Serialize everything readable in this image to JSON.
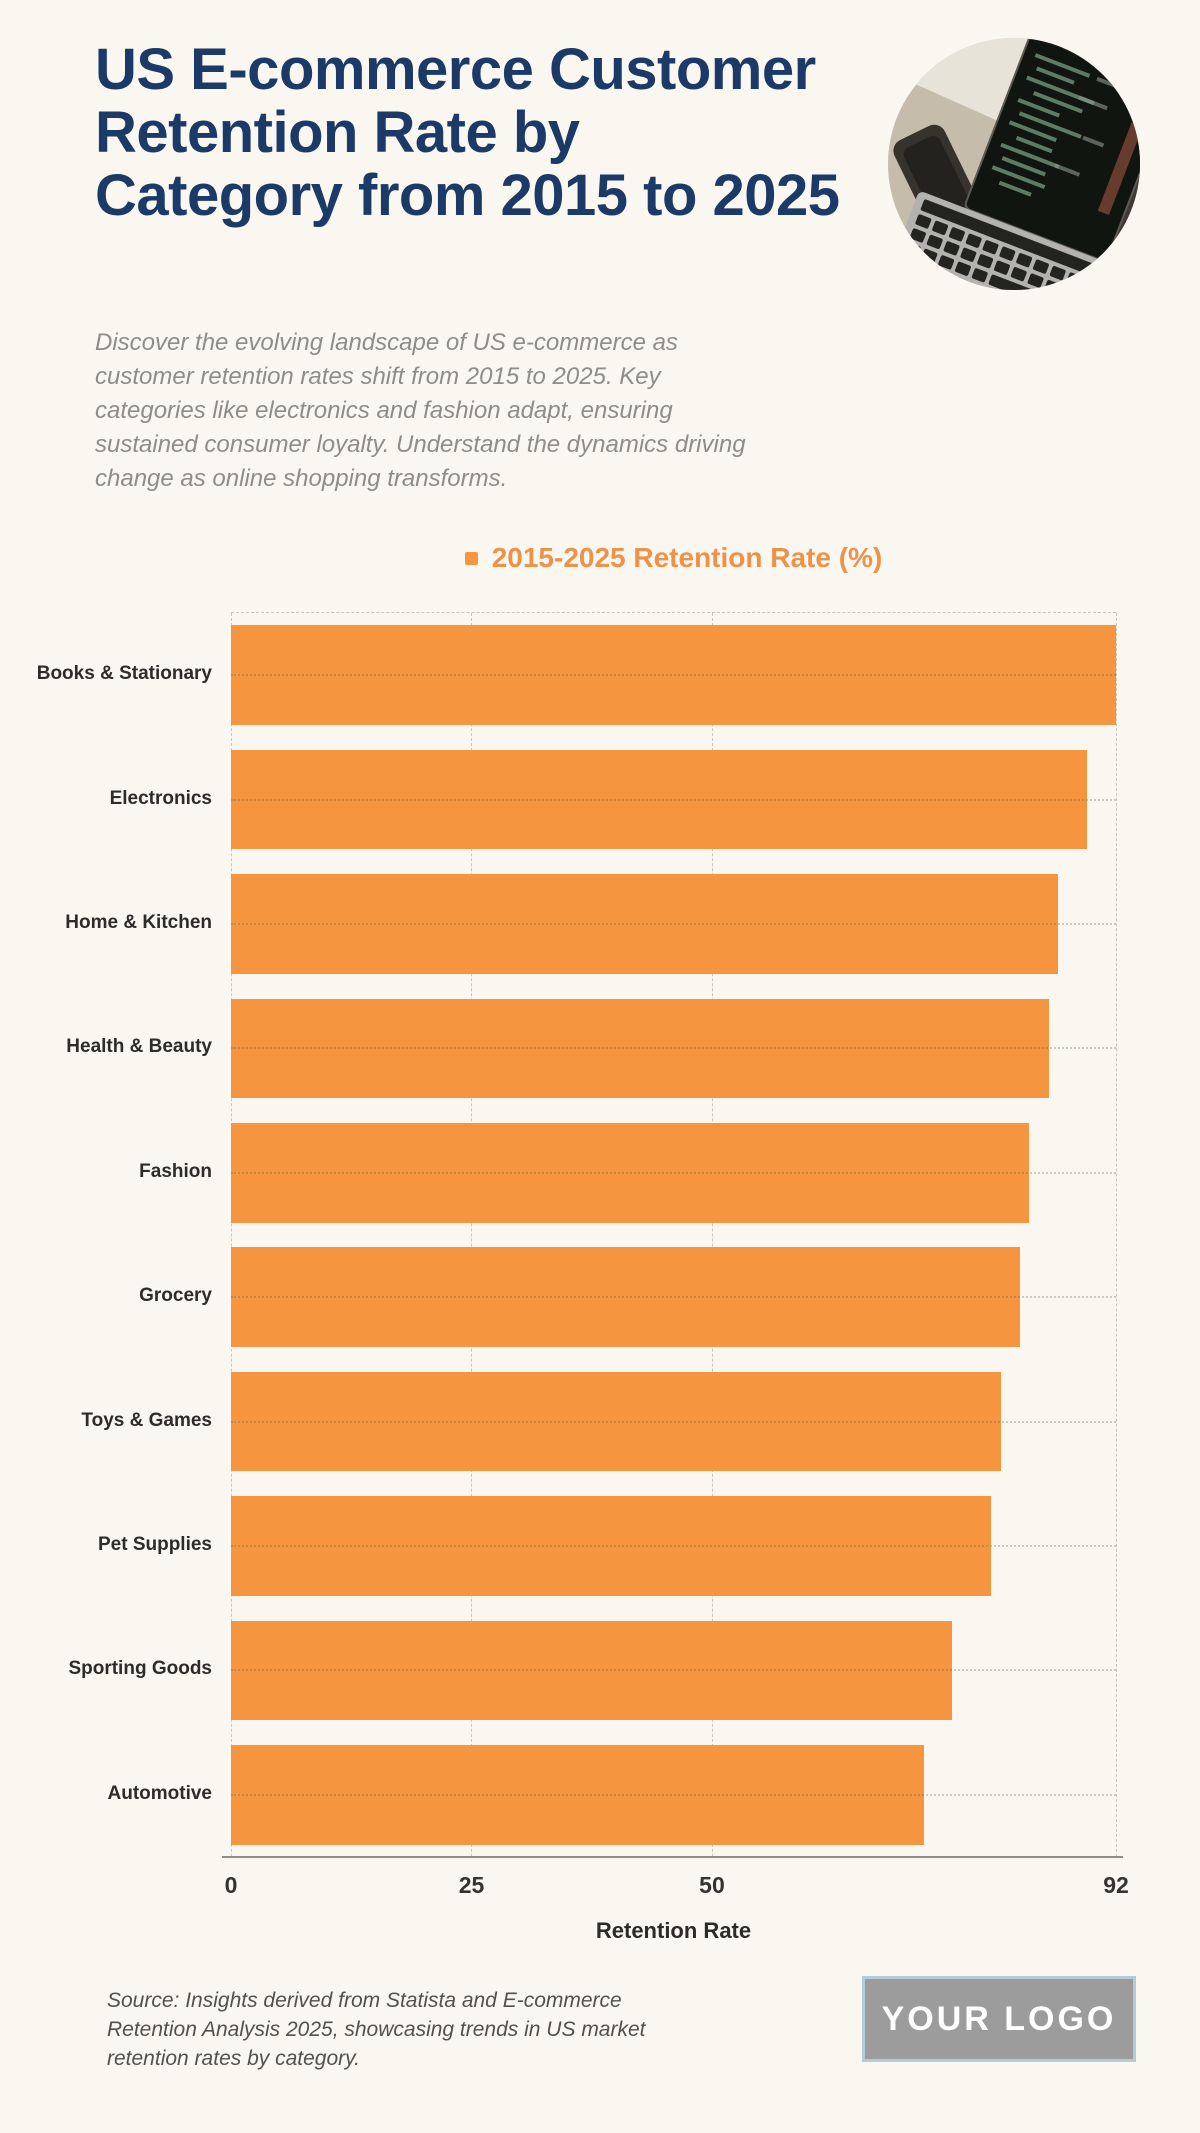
{
  "header": {
    "title": "US E-commerce Customer\nRetention Rate by\nCategory from 2015 to 2025",
    "photo_alt": "Laptop with code on screen"
  },
  "intro": "Discover the evolving landscape of US e-commerce as\ncustomer retention rates shift from 2015 to 2025. Key\ncategories like electronics and fashion adapt, ensuring\nsustained consumer loyalty. Understand the dynamics driving\nchange as online shopping transforms.",
  "chart_data": {
    "type": "bar",
    "orientation": "horizontal",
    "title": "",
    "categories": [
      "Books & Stationary",
      "Electronics",
      "Home & Kitchen",
      "Health & Beauty",
      "Fashion",
      "Grocery",
      "Toys & Games",
      "Pet Supplies",
      "Sporting Goods",
      "Automotive"
    ],
    "series": [
      {
        "name": "2015-2025 Retention Rate (%)",
        "color": "#F6953F",
        "values": [
          92,
          89,
          86,
          85,
          83,
          82,
          80,
          79,
          75,
          72
        ]
      }
    ],
    "xlabel": "Retention Rate",
    "ylabel": "",
    "xlim": [
      0,
      92
    ],
    "xticks": [
      0,
      25,
      50,
      92
    ],
    "grid": true,
    "legend_position": "top"
  },
  "source_note": "Source: Insights derived from Statista and E-commerce\nRetention Analysis 2025, showcasing trends in US market\nretention rates by category.",
  "logo_text": "YOUR LOGO",
  "colors": {
    "background": "#FAF7F0",
    "title_navy": "#1B3A68",
    "bar_orange": "#F6953F",
    "legend_orange": "#EE9149",
    "logo_gray": "#9C9C9C",
    "logo_border": "#B6CBD8"
  }
}
